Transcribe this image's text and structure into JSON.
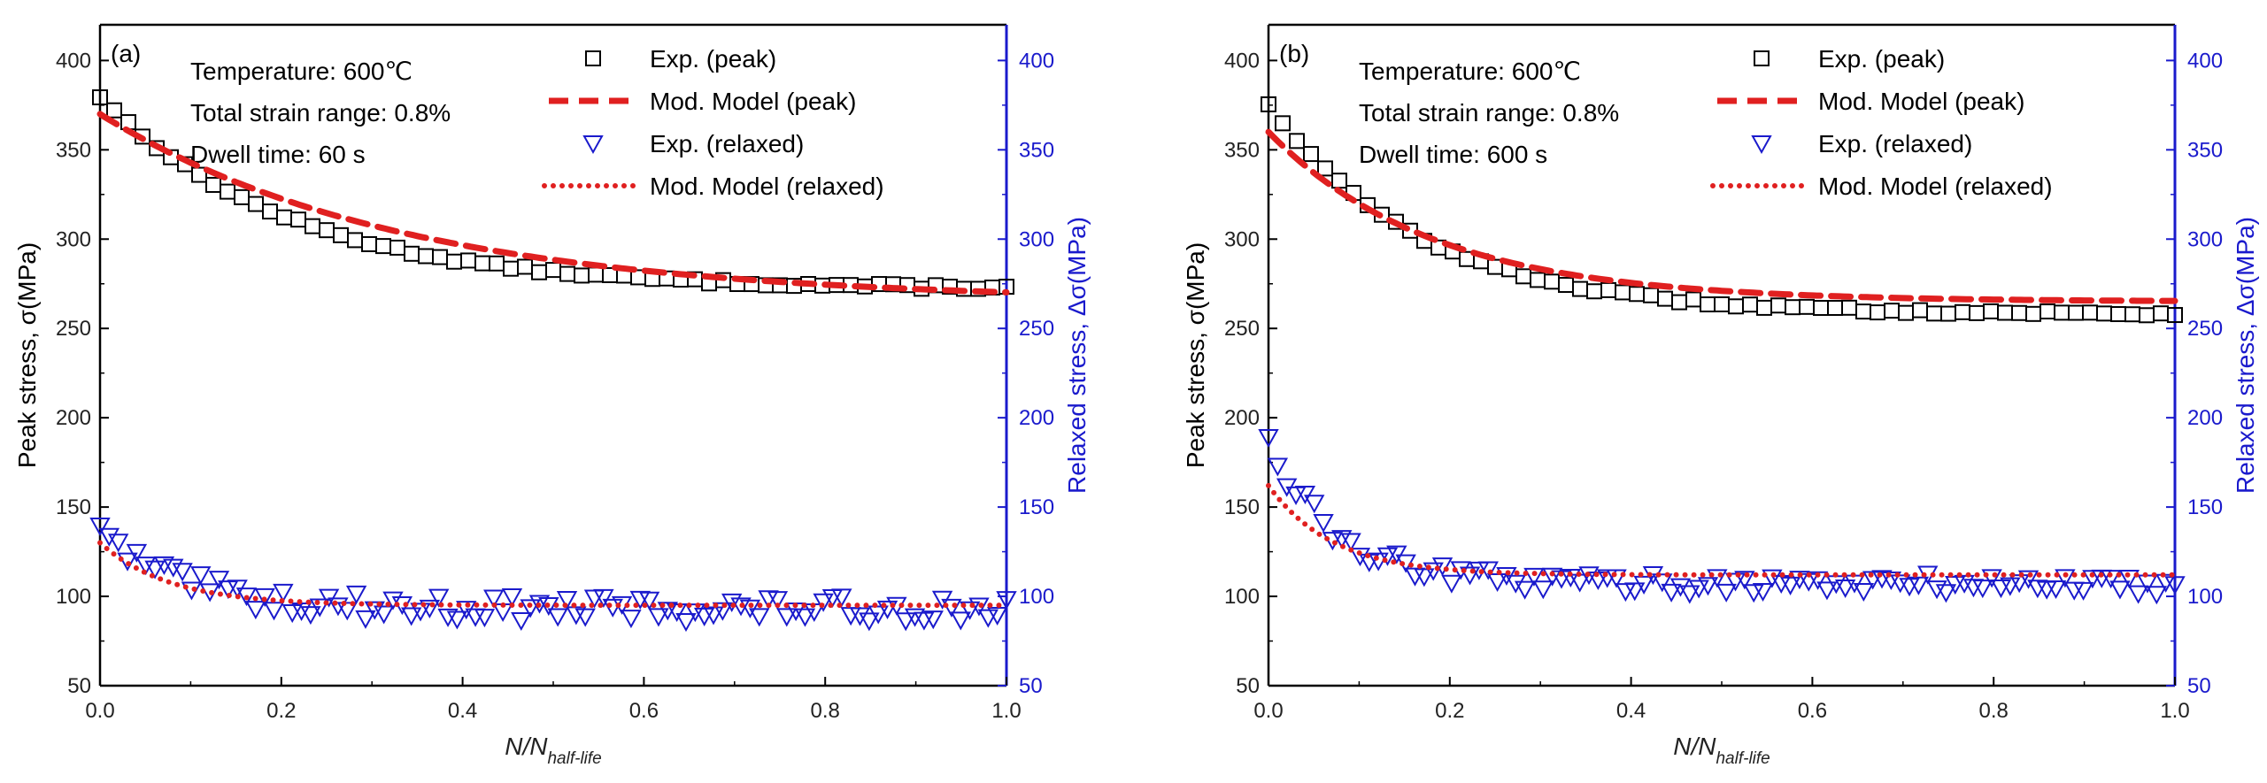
{
  "chart_data": [
    {
      "type": "scatter",
      "panel_label": "(a)",
      "annotations": [
        "Temperature: 600℃",
        "Total strain range: 0.8%",
        "Dwell time: 60 s"
      ],
      "xlabel_main": "N/N",
      "xlabel_sub": "half-life",
      "ylabel_left": "Peak stress, σ(MPa)",
      "ylabel_right": "Relaxed stress, Δσ(MPa)",
      "xlim": [
        0,
        1.0
      ],
      "ylim": [
        50,
        420
      ],
      "x_ticks": [
        0.0,
        0.2,
        0.4,
        0.6,
        0.8,
        1.0
      ],
      "x_tick_labels": [
        "0.0",
        "0.2",
        "0.4",
        "0.6",
        "0.8",
        "1.0"
      ],
      "y_ticks": [
        50,
        100,
        150,
        200,
        250,
        300,
        350,
        400
      ],
      "y_tick_labels": [
        "50",
        "100",
        "150",
        "200",
        "250",
        "300",
        "350",
        "400"
      ],
      "legend": [
        "Exp. (peak)",
        "Mod. Model (peak)",
        "Exp. (relaxed)",
        "Mod. Model (relaxed)"
      ],
      "colors": {
        "peak_marker": "#000000",
        "model": "#e02020",
        "relaxed_marker": "#1a1acc",
        "right_axis": "#1a1acc"
      },
      "series": [
        {
          "name": "Exp. (peak)",
          "kind": "square",
          "model": {
            "a": 272,
            "b": 108,
            "k": 4.8
          },
          "noise": 1.2,
          "count": 65
        },
        {
          "name": "Mod. Model (peak)",
          "kind": "dashed",
          "model": {
            "a": 265,
            "b": 105,
            "k": 3.0
          }
        },
        {
          "name": "Exp. (relaxed)",
          "kind": "triangle",
          "model": {
            "a": 93,
            "b": 42,
            "k": 11
          },
          "noise": 7,
          "count": 100
        },
        {
          "name": "Mod. Model (relaxed)",
          "kind": "dotted",
          "model": {
            "a": 95,
            "b": 35,
            "k": 13
          }
        }
      ]
    },
    {
      "type": "scatter",
      "panel_label": "(b)",
      "annotations": [
        "Temperature: 600℃",
        "Total strain range: 0.8%",
        "Dwell time: 600 s"
      ],
      "xlabel_main": "N/N",
      "xlabel_sub": "half-life",
      "ylabel_left": "Peak stress, σ(MPa)",
      "ylabel_right": "Relaxed stress, Δσ(MPa)",
      "xlim": [
        0,
        1.0
      ],
      "ylim": [
        50,
        420
      ],
      "x_ticks": [
        0.0,
        0.2,
        0.4,
        0.6,
        0.8,
        1.0
      ],
      "x_tick_labels": [
        "0.0",
        "0.2",
        "0.4",
        "0.6",
        "0.8",
        "1.0"
      ],
      "y_ticks": [
        50,
        100,
        150,
        200,
        250,
        300,
        350,
        400
      ],
      "y_tick_labels": [
        "50",
        "100",
        "150",
        "200",
        "250",
        "300",
        "350",
        "400"
      ],
      "legend": [
        "Exp. (peak)",
        "Mod. Model (peak)",
        "Exp. (relaxed)",
        "Mod. Model (relaxed)"
      ],
      "colors": {
        "peak_marker": "#000000",
        "model": "#e02020",
        "relaxed_marker": "#1a1acc",
        "right_axis": "#1a1acc"
      },
      "series": [
        {
          "name": "Exp. (peak)",
          "kind": "square",
          "model": {
            "a": 258,
            "b": 118,
            "k": 6.0
          },
          "noise": 1.2,
          "count": 65
        },
        {
          "name": "Mod. Model (peak)",
          "kind": "dashed",
          "model": {
            "a": 265,
            "b": 95,
            "k": 5.5
          }
        },
        {
          "name": "Exp. (relaxed)",
          "kind": "triangle",
          "model": {
            "a": 107,
            "b": 80,
            "k": 14
          },
          "noise": 6,
          "count": 100
        },
        {
          "name": "Mod. Model (relaxed)",
          "kind": "dotted",
          "model": {
            "a": 112,
            "b": 50,
            "k": 14
          }
        }
      ]
    }
  ]
}
